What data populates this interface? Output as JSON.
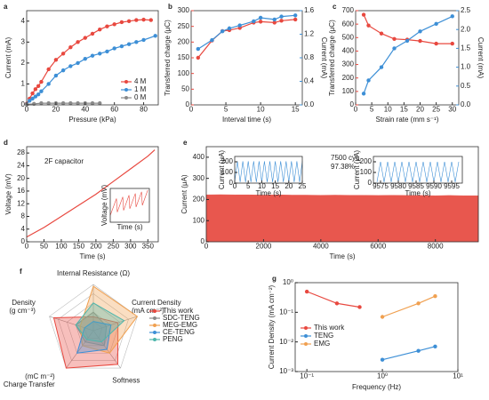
{
  "chart_data": [
    {
      "type": "line",
      "label": "a",
      "xlabel": "Pressure (kPa)",
      "ylabel": "Current (mA)",
      "xlim": [
        0,
        90
      ],
      "xticks": [
        0,
        20,
        40,
        60,
        80
      ],
      "ylim": [
        0,
        4.5
      ],
      "yticks": [
        0,
        1,
        2,
        3,
        4
      ],
      "markers": true,
      "legend": "lower right",
      "series": [
        {
          "name": "4 M",
          "color": "#e8483f",
          "x": [
            0,
            2,
            4,
            6,
            8,
            10,
            15,
            20,
            25,
            30,
            35,
            40,
            45,
            50,
            55,
            60,
            65,
            70,
            75,
            80,
            85
          ],
          "values": [
            0.05,
            0.3,
            0.55,
            0.75,
            0.9,
            1.1,
            1.7,
            2.15,
            2.45,
            2.75,
            3.0,
            3.2,
            3.4,
            3.6,
            3.75,
            3.85,
            3.95,
            4.0,
            4.05,
            4.07,
            4.05
          ]
        },
        {
          "name": "1 M",
          "color": "#3d8fd6",
          "x": [
            0,
            2,
            4,
            6,
            8,
            10,
            15,
            20,
            25,
            30,
            35,
            40,
            45,
            50,
            55,
            60,
            65,
            70,
            75,
            80,
            88
          ],
          "values": [
            0.03,
            0.2,
            0.3,
            0.4,
            0.5,
            0.65,
            1.0,
            1.4,
            1.65,
            1.85,
            2.0,
            2.2,
            2.35,
            2.45,
            2.55,
            2.7,
            2.8,
            2.9,
            3.0,
            3.1,
            3.3
          ]
        },
        {
          "name": "0 M",
          "color": "#8a8a8a",
          "x": [
            0,
            5,
            10,
            15,
            20,
            25,
            30,
            35,
            40,
            45,
            50
          ],
          "values": [
            0.02,
            0.05,
            0.08,
            0.08,
            0.08,
            0.08,
            0.08,
            0.08,
            0.08,
            0.08,
            0.08
          ]
        }
      ]
    },
    {
      "type": "line",
      "label": "b",
      "xlabel": "Interval time (s)",
      "ylabel": "Transferred charge (μC)",
      "y2label": "Current (mA)",
      "xlim": [
        0,
        16
      ],
      "xticks": [
        0,
        5,
        10,
        15
      ],
      "ylim": [
        0,
        300
      ],
      "yticks": [
        0,
        50,
        100,
        150,
        200,
        250,
        300
      ],
      "y2lim": [
        0,
        1.6
      ],
      "y2ticks": [
        {
          "value": 0,
          "label": "0.0"
        },
        0.4,
        0.8,
        1.2,
        1.6
      ],
      "markers": true,
      "series": [
        {
          "name": "Transferred charge",
          "color": "#e8483f",
          "x": [
            1,
            3,
            4.5,
            5.5,
            7,
            9,
            10,
            12,
            13,
            15
          ],
          "values": [
            150,
            205,
            235,
            238,
            245,
            262,
            265,
            262,
            268,
            272
          ]
        },
        {
          "name": "Current",
          "color": "#3d8fd6",
          "axis": "y2",
          "x": [
            1,
            3,
            4.5,
            5.5,
            7,
            9,
            10,
            12,
            13,
            15
          ],
          "values": [
            0.95,
            1.1,
            1.25,
            1.3,
            1.35,
            1.42,
            1.48,
            1.45,
            1.5,
            1.52
          ]
        }
      ]
    },
    {
      "type": "line",
      "label": "c",
      "xlabel": "Strain rate (mm s⁻¹)",
      "ylabel": "Transferred charge (μC)",
      "y2label": "Current (mA)",
      "xlim": [
        0,
        32
      ],
      "xticks": [
        0,
        5,
        10,
        15,
        20,
        25,
        30
      ],
      "ylim": [
        0,
        700
      ],
      "yticks": [
        0,
        100,
        200,
        300,
        400,
        500,
        600,
        700
      ],
      "y2lim": [
        0,
        2.5
      ],
      "y2ticks": [
        {
          "value": 0,
          "label": "0.0"
        },
        0.5,
        {
          "value": 1,
          "label": "1.0"
        },
        1.5,
        {
          "value": 2,
          "label": "2.0"
        },
        2.5
      ],
      "markers": true,
      "series": [
        {
          "name": "Transferred charge",
          "color": "#e8483f",
          "x": [
            2.5,
            4,
            8,
            12,
            16,
            20,
            25,
            30
          ],
          "values": [
            670,
            590,
            530,
            490,
            485,
            475,
            455,
            455
          ]
        },
        {
          "name": "Current",
          "color": "#3d8fd6",
          "axis": "y2",
          "x": [
            2.5,
            4,
            8,
            12,
            16,
            20,
            25,
            30
          ],
          "values": [
            0.3,
            0.65,
            1.0,
            1.5,
            1.7,
            1.95,
            2.15,
            2.35
          ]
        }
      ]
    },
    {
      "type": "line",
      "label": "d",
      "xlabel": "Time (s)",
      "ylabel": "Voltage (mV)",
      "xlim": [
        0,
        380
      ],
      "xticks": [
        0,
        50,
        100,
        150,
        200,
        250,
        300,
        350
      ],
      "ylim": [
        0,
        30
      ],
      "yticks": [
        0,
        4,
        8,
        12,
        16,
        20,
        24,
        28
      ],
      "markers": false,
      "annotations": [
        "2F capacitor"
      ],
      "series": [
        {
          "name": "Voltage",
          "color": "#e8483f",
          "x": [
            0,
            50,
            100,
            150,
            200,
            250,
            300,
            350,
            370
          ],
          "values": [
            1.5,
            4.5,
            8,
            11.5,
            15,
            19,
            23,
            27,
            29
          ]
        }
      ],
      "insets": [
        {
          "type": "line",
          "xlabel": "Time (s)",
          "ylabel": "Voltage (mV)",
          "xlim": [
            0,
            50
          ],
          "xticks": [],
          "ylim": [
            0,
            10
          ],
          "yticks": [],
          "markers": false,
          "series": [
            {
              "name": "Voltage",
              "color": "#e8483f",
              "x": [
                0,
                8,
                9,
                16,
                17,
                24,
                25,
                32,
                33,
                40,
                41,
                48
              ],
              "values": [
                2,
                7,
                3,
                7.5,
                3.5,
                8,
                4,
                8.5,
                4.5,
                9,
                5,
                9.5
              ]
            }
          ]
        }
      ]
    },
    {
      "type": "area",
      "label": "e",
      "xlabel": "Time (s)",
      "ylabel": "Current (μA)",
      "xlim": [
        0,
        9500
      ],
      "xticks": [
        0,
        2000,
        4000,
        6000,
        8000
      ],
      "ylim": [
        0,
        450
      ],
      "yticks": [
        0,
        100,
        200,
        300,
        400
      ],
      "markers": false,
      "annotations": [
        "7500 cyc",
        "97.38%"
      ],
      "series": [
        {
          "name": "Current",
          "color": "#e8574e",
          "x": [
            0,
            500,
            1000,
            1500,
            2000,
            2500,
            3000,
            3500,
            4000,
            4500,
            5000,
            5500,
            6000,
            6500,
            7000,
            7500,
            8000,
            8500,
            9000,
            9500
          ],
          "values": [
            222,
            223,
            222,
            222,
            221,
            222,
            221,
            221,
            220,
            221,
            220,
            220,
            219,
            220,
            219,
            219,
            218,
            219,
            218,
            218
          ]
        }
      ],
      "insets": [
        {
          "type": "line",
          "xlabel": "Time (s)",
          "ylabel": "Current (μA)",
          "xlim": [
            0,
            25
          ],
          "xticks": [
            0,
            5,
            10,
            15,
            20,
            25
          ],
          "ylim": [
            0,
            250
          ],
          "yticks": [
            0,
            100,
            200
          ],
          "markers": false,
          "series": [
            {
              "name": "Current",
              "color": "#3d8fd6",
              "x": [
                0,
                1,
                2,
                3,
                4,
                5,
                6,
                7,
                8,
                9,
                10,
                11,
                12,
                13,
                14,
                15,
                16,
                17,
                18,
                19,
                20,
                21,
                22,
                23,
                24,
                25
              ],
              "values": [
                10,
                205,
                10,
                205,
                10,
                205,
                10,
                205,
                10,
                205,
                10,
                205,
                10,
                205,
                10,
                205,
                10,
                205,
                10,
                205,
                10,
                205,
                10,
                205,
                10,
                205
              ]
            }
          ]
        },
        {
          "type": "line",
          "xlabel": "Time (s)",
          "ylabel": "Current (μA)",
          "xlim": [
            9573,
            9598
          ],
          "xticks": [
            9575,
            9580,
            9585,
            9590,
            9595
          ],
          "ylim": [
            0,
            250
          ],
          "yticks": [
            0,
            100,
            200
          ],
          "markers": false,
          "series": [
            {
              "name": "Current",
              "color": "#3d8fd6",
              "x": [
                9574,
                9575,
                9576,
                9577,
                9578,
                9579,
                9580,
                9581,
                9582,
                9583,
                9584,
                9585,
                9586,
                9587,
                9588,
                9589,
                9590,
                9591,
                9592,
                9593,
                9594,
                9595,
                9596,
                9597
              ],
              "values": [
                10,
                200,
                10,
                200,
                10,
                200,
                10,
                200,
                10,
                200,
                10,
                200,
                10,
                200,
                10,
                200,
                10,
                200,
                10,
                200,
                10,
                200,
                10,
                200
              ]
            }
          ]
        }
      ]
    },
    {
      "type": "radar",
      "label": "f",
      "rlim": [
        0,
        5
      ],
      "rticks": [
        1,
        2,
        3,
        4,
        5
      ],
      "legend": "center right",
      "axes": [
        [
          "Internal Resistance (Ω)"
        ],
        [
          "Current Density",
          "(mA cm⁻²)"
        ],
        [
          "Softness"
        ],
        [
          "(mC m⁻²)",
          "Charge Transfer"
        ],
        [
          "Density",
          "(g cm⁻³)"
        ]
      ],
      "series": [
        {
          "name": "This work",
          "color": "#e8483f",
          "values": [
            1.5,
            2.8,
            4.5,
            5,
            4.5
          ]
        },
        {
          "name": "SDC-TENG",
          "color": "#8a8a8a",
          "values": [
            2,
            1.5,
            2,
            1.5,
            2
          ]
        },
        {
          "name": "MEG-EMG",
          "color": "#f0a050",
          "values": [
            4.8,
            5,
            3,
            2,
            1.5
          ]
        },
        {
          "name": "CE-TENG",
          "color": "#3d8fd6",
          "values": [
            1,
            2,
            2.5,
            3,
            1
          ]
        },
        {
          "name": "PENG",
          "color": "#4db6ac",
          "values": [
            3,
            3.5,
            1.5,
            1.2,
            2
          ]
        }
      ]
    },
    {
      "type": "line",
      "label": "g",
      "xlabel": "Frequency (Hz)",
      "ylabel": "Current Density (mA cm⁻²)",
      "xlog": true,
      "ylog": true,
      "xlim": [
        0.07,
        10
      ],
      "xticks": [
        {
          "value": 0.1,
          "label": "10⁻¹"
        },
        {
          "value": 1,
          "label": "10⁰"
        },
        {
          "value": 10,
          "label": "10¹"
        }
      ],
      "ylim": [
        0.001,
        1
      ],
      "yticks": [
        {
          "value": 0.001,
          "label": "10⁻³"
        },
        {
          "value": 0.01,
          "label": "10⁻²"
        },
        {
          "value": 0.1,
          "label": "10⁻¹"
        },
        {
          "value": 1,
          "label": "10⁰"
        }
      ],
      "markers": true,
      "legend": "center left",
      "series": [
        {
          "name": "This work",
          "color": "#e8483f",
          "x": [
            0.1,
            0.25,
            0.5
          ],
          "values": [
            0.5,
            0.2,
            0.15
          ]
        },
        {
          "name": "TENG",
          "color": "#3d8fd6",
          "x": [
            1,
            3,
            5
          ],
          "values": [
            0.0025,
            0.005,
            0.007
          ]
        },
        {
          "name": "EMG",
          "color": "#f0a050",
          "x": [
            1,
            3,
            5
          ],
          "values": [
            0.07,
            0.2,
            0.35
          ]
        }
      ]
    }
  ]
}
